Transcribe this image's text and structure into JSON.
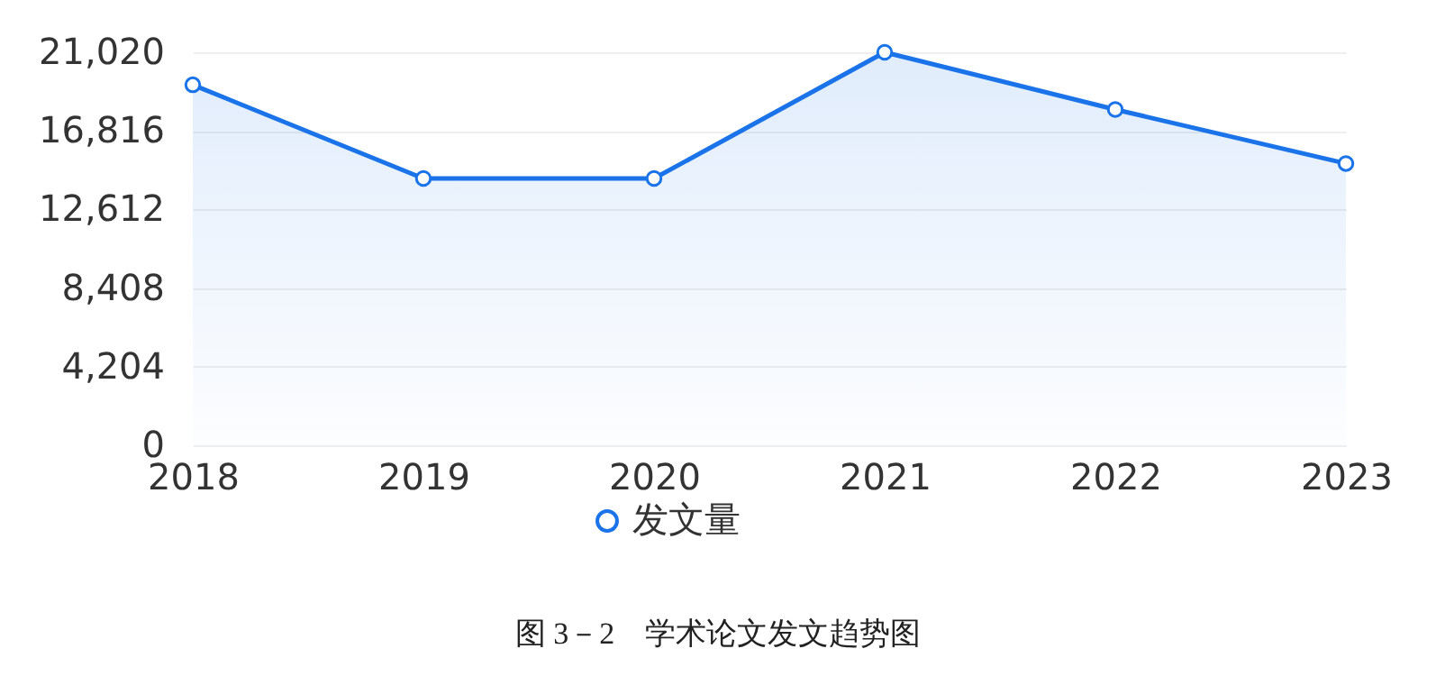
{
  "chart_data": {
    "type": "area",
    "categories": [
      "2018",
      "2019",
      "2020",
      "2021",
      "2022",
      "2023"
    ],
    "series": [
      {
        "name": "发文量",
        "color": "#1a73e8",
        "values": [
          19280,
          14270,
          14270,
          21020,
          17960,
          15070
        ]
      }
    ],
    "ylim": [
      0,
      21020
    ],
    "yticks": [
      0,
      {
        "value": 4204,
        "label": "4,204"
      },
      {
        "value": 8408,
        "label": "8,408"
      },
      {
        "value": 12612,
        "label": "12,612"
      },
      {
        "value": 16816,
        "label": "16,816"
      },
      {
        "value": 21020,
        "label": "21,020"
      }
    ],
    "grid": "y",
    "legend": "bottom",
    "marker": "circle",
    "annotations": [
      "图 3－2　学术论文发文趋势图"
    ]
  }
}
